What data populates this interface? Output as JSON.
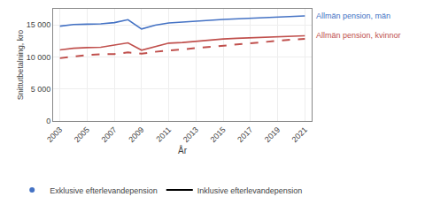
{
  "chart_data": {
    "type": "line",
    "xlabel": "År",
    "ylabel": "Snittutbetalning, kro",
    "x": [
      2003,
      2004,
      2005,
      2006,
      2007,
      2008,
      2009,
      2010,
      2011,
      2012,
      2013,
      2014,
      2015,
      2016,
      2017,
      2018,
      2019,
      2020,
      2021
    ],
    "series": [
      {
        "color": "#4472c4",
        "line_style": "solid",
        "values": [
          14800,
          15050,
          15100,
          15150,
          15350,
          15800,
          14350,
          14950,
          15300,
          15400,
          15500,
          15700,
          15850,
          15950,
          16050,
          16150,
          16200,
          16300,
          16400
        ]
      },
      {
        "color": "#c0504d",
        "line_style": "solid",
        "values": [
          11100,
          11350,
          11450,
          11500,
          11850,
          12200,
          11050,
          11600,
          12150,
          12250,
          12450,
          12650,
          12800,
          12900,
          13000,
          13100,
          13200,
          13200,
          13300
        ]
      },
      {
        "color": "#c0504d",
        "line_style": "dashed",
        "values": [
          9800,
          10050,
          10300,
          10400,
          10450,
          10700,
          10500,
          10800,
          11000,
          11100,
          11350,
          11550,
          11750,
          11950,
          12150,
          12400,
          12600,
          12700,
          12800
        ]
      }
    ],
    "annotations": [
      {
        "text": "Allmän pension, män",
        "series": 0
      },
      {
        "text": "Allmän pension, kvinnor",
        "series": 1
      }
    ],
    "legend_entries": [
      {
        "name": "Exklusive efterlevandepension",
        "color": "#4472c4",
        "marker": "dot"
      },
      {
        "name": "Inklusive efterlevandepension",
        "color": "#000000",
        "line_style": "solid"
      }
    ],
    "legend": "bottom",
    "xlim": [
      2002.5,
      2021.5
    ],
    "xticks": [
      2003,
      2005,
      2007,
      2009,
      2011,
      2013,
      2015,
      2017,
      2019,
      2021
    ],
    "ylim": [
      0,
      17500
    ],
    "yticks": [
      0,
      {
        "value": 5000,
        "label": "5 000"
      },
      {
        "value": 10000,
        "label": "10 000"
      },
      {
        "value": 15000,
        "label": "15 000"
      }
    ],
    "grid": true
  }
}
